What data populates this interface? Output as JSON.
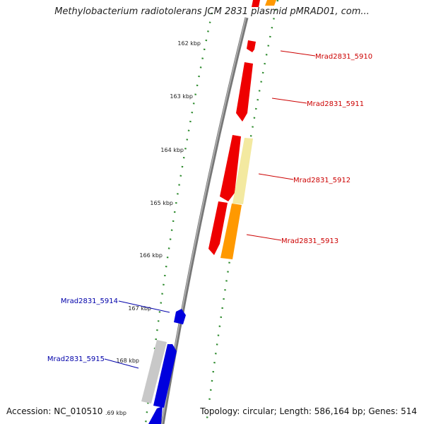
{
  "title": "Methylobacterium radiotolerans JCM 2831 plasmid pMRAD01, com...",
  "footer": {
    "accession": "Accession: NC_010510",
    "stats": "Topology: circular; Length: 586,164 bp; Genes: 514"
  },
  "colors": {
    "backbone": "#8a8a8a",
    "tick": "#2e8b2e",
    "gene_red": "#ee0000",
    "gene_orange": "#ff9900",
    "gene_yellow": "#f3e9a0",
    "gene_blue": "#0000dd",
    "gene_grey": "#c8c8c8",
    "label_red": "#cc0000",
    "label_blue": "#0000aa"
  },
  "kbp_labels": [
    "162 kbp",
    "163 kbp",
    "164 kbp",
    "165 kbp",
    "166 kbp",
    "167 kbp",
    "168 kbp",
    ".69 kbp"
  ],
  "genes": [
    {
      "name": "Mrad2831_5910",
      "color": "red"
    },
    {
      "name": "Mrad2831_5911",
      "color": "red"
    },
    {
      "name": "Mrad2831_5912",
      "color": "red"
    },
    {
      "name": "Mrad2831_5913",
      "color": "red"
    },
    {
      "name": "Mrad2831_5914",
      "color": "blue"
    },
    {
      "name": "Mrad2831_5915",
      "color": "blue"
    }
  ]
}
